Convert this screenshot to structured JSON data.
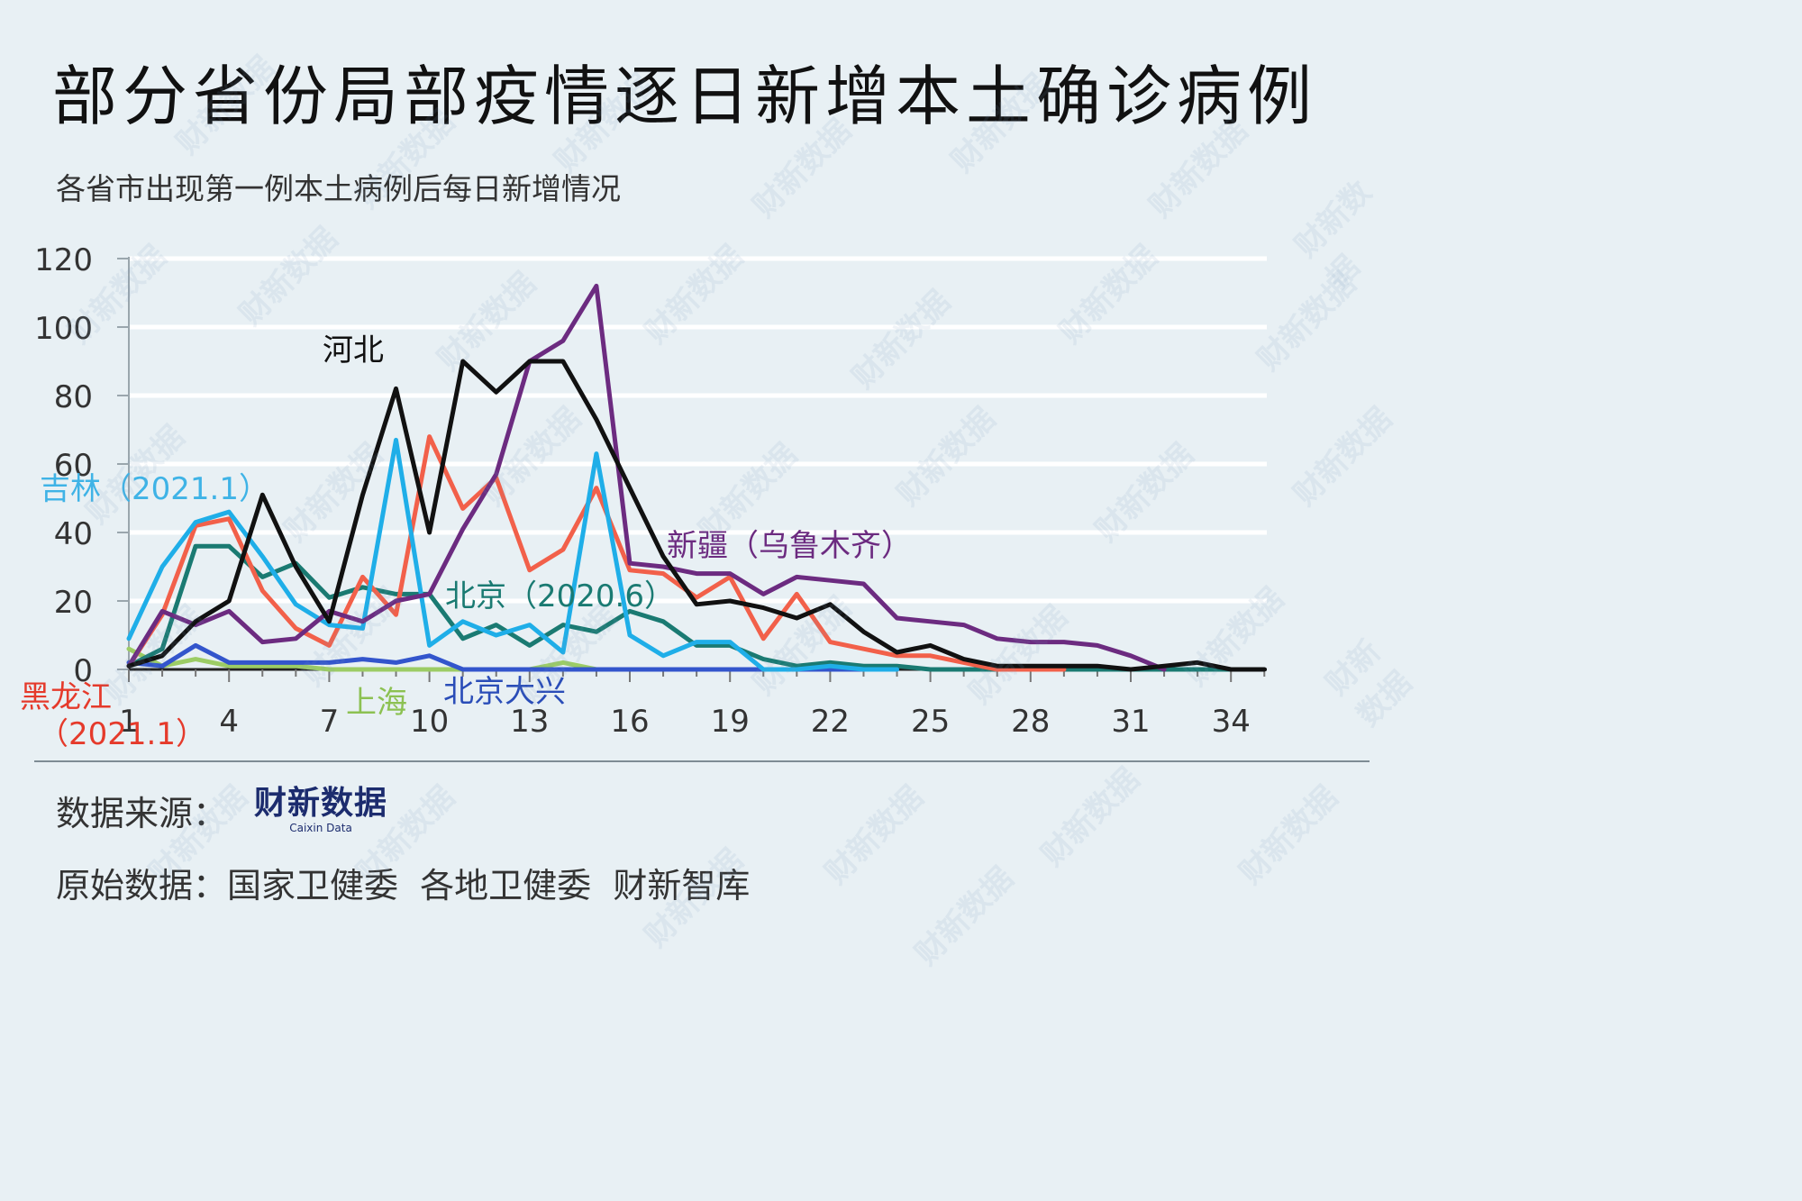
{
  "title": "部分省份局部疫情逐日新增本土确诊病例",
  "subtitle": "各省市出现第一例本土病例后每日新增情况",
  "footer": {
    "source_label": "数据来源：",
    "logo_main": "财新数据",
    "logo_sub": "Caixin Data",
    "raw_label": "原始数据：",
    "raw_sources": "国家卫健委  各地卫健委  财新智库"
  },
  "watermark": "财新数据",
  "chart_data": {
    "type": "line",
    "title": "部分省份局部疫情逐日新增本土确诊病例",
    "subtitle": "各省市出现第一例本土病例后每日新增情况",
    "xlabel": "",
    "ylabel": "",
    "xlim": [
      1,
      35
    ],
    "ylim": [
      0,
      120
    ],
    "xticks": [
      1,
      4,
      7,
      10,
      13,
      16,
      19,
      22,
      25,
      28,
      31,
      34
    ],
    "yticks": [
      0,
      20,
      40,
      60,
      80,
      100,
      120
    ],
    "grid": true,
    "series": [
      {
        "name": "上海",
        "color": "#9ccc65",
        "label_text": "上海",
        "x": [
          1,
          2,
          3,
          4,
          5,
          6,
          7,
          8,
          9,
          10,
          11,
          12,
          13,
          14,
          15,
          16
        ],
        "values": [
          6,
          1,
          3,
          1,
          1,
          1,
          0,
          0,
          0,
          0,
          0,
          0,
          0,
          2,
          0,
          0
        ]
      },
      {
        "name": "北京大兴",
        "color": "#3355cc",
        "label_text": "北京大兴",
        "x": [
          1,
          2,
          3,
          4,
          5,
          6,
          7,
          8,
          9,
          10,
          11,
          12,
          13,
          14,
          15,
          16,
          17,
          18,
          19,
          20,
          21,
          22,
          23,
          24
        ],
        "values": [
          2,
          1,
          7,
          2,
          2,
          2,
          2,
          3,
          2,
          4,
          0,
          0,
          0,
          0,
          0,
          0,
          0,
          0,
          0,
          0,
          0,
          0,
          0,
          0
        ]
      },
      {
        "name": "北京（2020.6）",
        "color": "#1a7a72",
        "label_text": "北京（2020.6）",
        "x": [
          1,
          2,
          3,
          4,
          5,
          6,
          7,
          8,
          9,
          10,
          11,
          12,
          13,
          14,
          15,
          16,
          17,
          18,
          19,
          20,
          21,
          22,
          23,
          24,
          25,
          26,
          27,
          28,
          29,
          30,
          31,
          32,
          33,
          34
        ],
        "values": [
          1,
          6,
          36,
          36,
          27,
          31,
          21,
          24,
          22,
          22,
          9,
          13,
          7,
          13,
          11,
          17,
          14,
          7,
          7,
          3,
          1,
          2,
          1,
          1,
          0,
          0,
          0,
          0,
          0,
          0,
          0,
          0,
          0,
          0
        ]
      },
      {
        "name": "黑龙江（2021.1）",
        "color": "#f2604a",
        "label_text": "黑龙江（2021.1）",
        "x": [
          1,
          2,
          3,
          4,
          5,
          6,
          7,
          8,
          9,
          10,
          11,
          12,
          13,
          14,
          15,
          16,
          17,
          18,
          19,
          20,
          21,
          22,
          23,
          24,
          25,
          26,
          27,
          28,
          29
        ],
        "values": [
          1,
          16,
          42,
          44,
          23,
          12,
          7,
          27,
          16,
          68,
          47,
          56,
          29,
          35,
          53,
          29,
          28,
          21,
          27,
          9,
          22,
          8,
          6,
          4,
          4,
          2,
          0,
          0,
          0
        ]
      },
      {
        "name": "吉林（2021.1）",
        "color": "#1faee8",
        "label_text": "吉林（2021.1）",
        "x": [
          1,
          2,
          3,
          4,
          5,
          6,
          7,
          8,
          9,
          10,
          11,
          12,
          13,
          14,
          15,
          16,
          17,
          18,
          19,
          20,
          21,
          22,
          23,
          24
        ],
        "values": [
          9,
          30,
          43,
          46,
          33,
          19,
          13,
          12,
          67,
          7,
          14,
          10,
          13,
          5,
          63,
          10,
          4,
          8,
          8,
          0,
          0,
          1,
          0,
          0
        ]
      },
      {
        "name": "新疆（乌鲁木齐）",
        "color": "#6c2b80",
        "label_text": "新疆（乌鲁木齐）",
        "x": [
          1,
          2,
          3,
          4,
          5,
          6,
          7,
          8,
          9,
          10,
          11,
          12,
          13,
          14,
          15,
          16,
          17,
          18,
          19,
          20,
          21,
          22,
          23,
          24,
          25,
          26,
          27,
          28,
          29,
          30,
          31,
          32
        ],
        "values": [
          1,
          17,
          13,
          17,
          8,
          9,
          17,
          14,
          20,
          22,
          41,
          57,
          90,
          96,
          112,
          31,
          30,
          28,
          28,
          22,
          27,
          26,
          25,
          15,
          14,
          13,
          9,
          8,
          8,
          7,
          4,
          0
        ]
      },
      {
        "name": "河北",
        "color": "#111111",
        "label_text": "河北",
        "x": [
          1,
          2,
          3,
          4,
          5,
          6,
          7,
          8,
          9,
          10,
          11,
          12,
          13,
          14,
          15,
          16,
          17,
          18,
          19,
          20,
          21,
          22,
          23,
          24,
          25,
          26,
          27,
          28,
          29,
          30,
          31,
          32,
          33,
          34,
          35
        ],
        "values": [
          1,
          4,
          14,
          20,
          51,
          30,
          14,
          51,
          82,
          40,
          90,
          81,
          90,
          90,
          73,
          53,
          33,
          19,
          20,
          18,
          15,
          19,
          11,
          5,
          7,
          3,
          1,
          1,
          1,
          1,
          0,
          1,
          2,
          0,
          0
        ]
      }
    ]
  }
}
